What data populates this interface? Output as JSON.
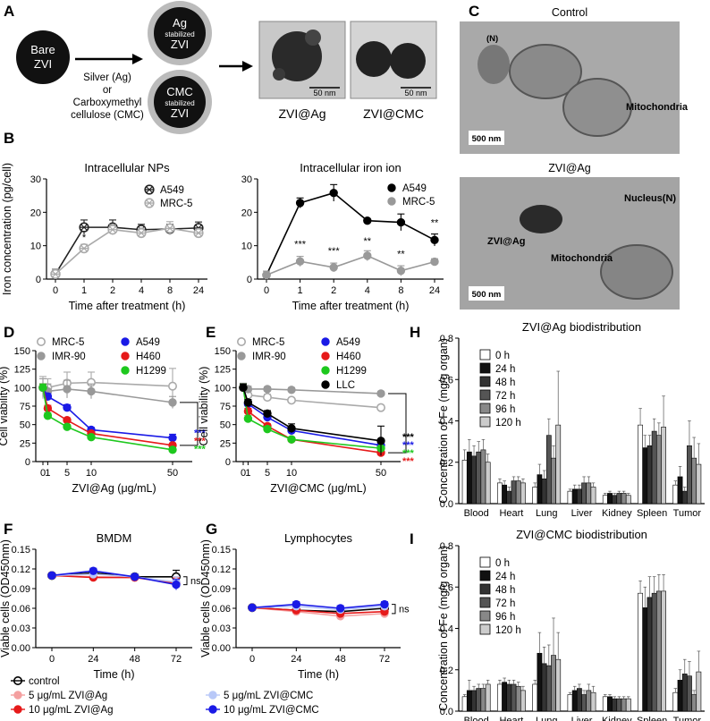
{
  "panels": {
    "A": {
      "label": "A",
      "bare": [
        "Bare",
        "ZVI"
      ],
      "ag_np": [
        "Ag",
        "stabilized",
        "ZVI"
      ],
      "cmc_np": [
        "CMC",
        "stabilized",
        "ZVI"
      ],
      "reagent": [
        "Silver (Ag)",
        "or",
        "Carboxymethyl",
        "cellulose (CMC)"
      ],
      "tem_scale": [
        "50 nm",
        "50 nm"
      ],
      "tem_names": [
        "ZVI@Ag",
        "ZVI@CMC"
      ]
    },
    "C": {
      "label": "C",
      "control_title": "Control",
      "control_labels": [
        "(N)",
        "Mitochondria",
        "500 nm"
      ],
      "zvi_title": "ZVI@Ag",
      "zvi_labels": [
        "Nucleus(N)",
        "ZVI@Ag",
        "Mitochondria",
        "500 nm"
      ]
    },
    "B": {
      "label": "B"
    },
    "D": {
      "label": "D"
    },
    "E": {
      "label": "E"
    },
    "F": {
      "label": "F"
    },
    "G": {
      "label": "G"
    },
    "H": {
      "label": "H"
    },
    "I": {
      "label": "I"
    }
  },
  "colors": {
    "A549": "#1a1ae6",
    "H460": "#e61a1a",
    "H1299": "#1ec81e",
    "LLC": "#000000",
    "gray": "#999999",
    "lightgray": "#bbbbbb"
  },
  "chart_data": [
    {
      "id": "B1",
      "type": "line",
      "title": "Intracellular NPs",
      "xlabel": "Time after treatment (h)",
      "ylabel": "Iron concentration (pg/cell)",
      "categories": [
        "0",
        "1",
        "2",
        "4",
        "8",
        "24"
      ],
      "ylim": [
        0,
        30
      ],
      "yticks": [
        0,
        10,
        20,
        30
      ],
      "legend_position": "top-right",
      "series": [
        {
          "name": "A549",
          "values": [
            1.5,
            15.5,
            15.5,
            14.8,
            15,
            15.3
          ],
          "err": [
            1.5,
            2.2,
            2.2,
            1.6,
            1.4,
            1.8
          ],
          "color": "#222222",
          "marker": "circle-x"
        },
        {
          "name": "MRC-5",
          "values": [
            1.5,
            9.2,
            14.8,
            13.8,
            15.2,
            13.8
          ],
          "err": [
            1.5,
            1.2,
            1.5,
            1.5,
            2.0,
            1.2
          ],
          "color": "#aaaaaa",
          "marker": "circle-x"
        }
      ],
      "annotations": [
        {
          "x": "1",
          "y": 11.5,
          "text": "*"
        }
      ]
    },
    {
      "id": "B2",
      "type": "line",
      "title": "Intracellular iron ion",
      "xlabel": "Time after treatment (h)",
      "ylabel": "",
      "categories": [
        "0",
        "1",
        "2",
        "4",
        "8",
        "24"
      ],
      "ylim": [
        0,
        30
      ],
      "yticks": [
        0,
        10,
        20,
        30
      ],
      "legend_position": "top-right",
      "series": [
        {
          "name": "A549",
          "values": [
            1.2,
            22.8,
            25.8,
            17.5,
            17,
            11.7
          ],
          "err": [
            1.2,
            1.5,
            2.5,
            0.5,
            2.5,
            1.8
          ],
          "color": "#000000",
          "marker": "circle"
        },
        {
          "name": "MRC-5",
          "values": [
            1.2,
            5.3,
            3.5,
            7,
            2.5,
            5.2
          ],
          "err": [
            1.2,
            1.5,
            1.3,
            1.5,
            1.5,
            0.9
          ],
          "color": "#999999",
          "marker": "circle"
        }
      ],
      "annotations": [
        {
          "x": "1",
          "y": 9.5,
          "text": "***"
        },
        {
          "x": "2",
          "y": 7.5,
          "text": "***"
        },
        {
          "x": "4",
          "y": 10.5,
          "text": "**"
        },
        {
          "x": "8",
          "y": 6.5,
          "text": "**"
        },
        {
          "x": "24",
          "y": 16,
          "text": "**"
        }
      ]
    },
    {
      "id": "D",
      "type": "line",
      "title": "",
      "xlabel": "ZVI@Ag (μg/mL)",
      "ylabel": "Cell viability (%)",
      "x": [
        0,
        1,
        5,
        10,
        50
      ],
      "xticks": [
        "0",
        "1",
        "5",
        "10",
        "50"
      ],
      "ylim": [
        0,
        150
      ],
      "yticks": [
        0,
        25,
        50,
        75,
        100,
        125,
        150
      ],
      "series": [
        {
          "name": "MRC-5",
          "values": [
            100,
            100,
            106,
            107,
            102
          ],
          "err": [
            15,
            12,
            15,
            14,
            24
          ],
          "color": "#aaaaaa",
          "marker": "open"
        },
        {
          "name": "IMR-90",
          "values": [
            100,
            95,
            98,
            95,
            80
          ],
          "err": [
            12,
            10,
            12,
            10,
            8
          ],
          "color": "#999999",
          "marker": "filled"
        },
        {
          "name": "A549",
          "values": [
            100,
            88,
            73,
            43,
            32
          ],
          "err": [
            5,
            4,
            4,
            3,
            5
          ],
          "color": "#1a1ae6",
          "marker": "filled"
        },
        {
          "name": "H460",
          "values": [
            100,
            72,
            56,
            38,
            22
          ],
          "err": [
            5,
            4,
            3,
            3,
            3
          ],
          "color": "#e61a1a",
          "marker": "filled"
        },
        {
          "name": "H1299",
          "values": [
            100,
            62,
            47,
            33,
            16
          ],
          "err": [
            5,
            4,
            3,
            3,
            3
          ],
          "color": "#1ec81e",
          "marker": "filled"
        }
      ],
      "stars": [
        {
          "text": "***",
          "color": "#1a1ae6"
        },
        {
          "text": "***",
          "color": "#e61a1a"
        },
        {
          "text": "***",
          "color": "#1ec81e"
        }
      ]
    },
    {
      "id": "E",
      "type": "line",
      "title": "",
      "xlabel": "ZVI@CMC (μg/mL)",
      "ylabel": "Cell viability (%)",
      "x": [
        0,
        1,
        5,
        10,
        50
      ],
      "xticks": [
        "0",
        "1",
        "5",
        "10",
        "50"
      ],
      "ylim": [
        0,
        150
      ],
      "yticks": [
        0,
        25,
        50,
        75,
        100,
        125,
        150
      ],
      "series": [
        {
          "name": "MRC-5",
          "values": [
            100,
            90,
            87,
            83,
            73
          ],
          "err": [
            6,
            5,
            4,
            3,
            3
          ],
          "color": "#aaaaaa",
          "marker": "open"
        },
        {
          "name": "IMR-90",
          "values": [
            100,
            98,
            98,
            97,
            92
          ],
          "err": [
            5,
            4,
            3,
            3,
            3
          ],
          "color": "#999999",
          "marker": "filled"
        },
        {
          "name": "A549",
          "values": [
            100,
            78,
            60,
            42,
            22
          ],
          "err": [
            5,
            4,
            3,
            3,
            3
          ],
          "color": "#1a1ae6",
          "marker": "filled"
        },
        {
          "name": "H460",
          "values": [
            100,
            68,
            48,
            30,
            12
          ],
          "err": [
            5,
            4,
            3,
            3,
            3
          ],
          "color": "#e61a1a",
          "marker": "filled"
        },
        {
          "name": "H1299",
          "values": [
            100,
            58,
            44,
            30,
            18
          ],
          "err": [
            5,
            4,
            3,
            3,
            3
          ],
          "color": "#1ec81e",
          "marker": "filled"
        },
        {
          "name": "LLC",
          "values": [
            100,
            80,
            65,
            45,
            28
          ],
          "err": [
            5,
            4,
            4,
            6,
            20
          ],
          "color": "#000000",
          "marker": "filled"
        }
      ],
      "stars": [
        {
          "text": "***",
          "color": "#000000"
        },
        {
          "text": "***",
          "color": "#1a1ae6"
        },
        {
          "text": "***",
          "color": "#1ec81e"
        },
        {
          "text": "***",
          "color": "#e61a1a"
        }
      ]
    },
    {
      "id": "F",
      "type": "line",
      "title": "BMDM",
      "xlabel": "Time (h)",
      "ylabel": "Viable cells (OD450nm)",
      "x": [
        0,
        24,
        48,
        72
      ],
      "xticks": [
        "0",
        "24",
        "48",
        "72"
      ],
      "ylim": [
        0,
        0.15
      ],
      "yticks": [
        "0.00",
        "0.03",
        "0.06",
        "0.09",
        "0.12",
        "0.15"
      ],
      "series": [
        {
          "name": "control",
          "values": [
            0.11,
            0.114,
            0.108,
            0.108
          ],
          "err": [
            0.003,
            0.004,
            0.004,
            0.01
          ],
          "color": "#000000",
          "marker": "open"
        },
        {
          "name": "5 μg/mL ZVI@Ag",
          "values": [
            0.11,
            0.108,
            0.107,
            0.1
          ],
          "err": [
            0.003,
            0.004,
            0.004,
            0.008
          ],
          "color": "#f4a0a0",
          "marker": "filled"
        },
        {
          "name": "10 μg/mL ZVI@Ag",
          "values": [
            0.11,
            0.107,
            0.107,
            0.098
          ],
          "err": [
            0.003,
            0.004,
            0.004,
            0.008
          ],
          "color": "#e61a1a",
          "marker": "filled"
        },
        {
          "name": "5 μg/mL ZVI@CMC",
          "values": [
            0.11,
            0.112,
            0.108,
            0.1
          ],
          "err": [
            0.003,
            0.004,
            0.004,
            0.008
          ],
          "color": "#b8c8f8",
          "marker": "filled"
        },
        {
          "name": "10 μg/mL ZVI@CMC",
          "values": [
            0.11,
            0.117,
            0.108,
            0.096
          ],
          "err": [
            0.003,
            0.004,
            0.004,
            0.008
          ],
          "color": "#1a1ae6",
          "marker": "filled"
        }
      ],
      "sig": "ns"
    },
    {
      "id": "G",
      "type": "line",
      "title": "Lymphocytes",
      "xlabel": "Time (h)",
      "ylabel": "Viable cells (OD450nm)",
      "x": [
        0,
        24,
        48,
        72
      ],
      "xticks": [
        "0",
        "24",
        "48",
        "72"
      ],
      "ylim": [
        0,
        0.15
      ],
      "yticks": [
        "0.00",
        "0.03",
        "0.06",
        "0.09",
        "0.12",
        "0.15"
      ],
      "series": [
        {
          "name": "control",
          "values": [
            0.061,
            0.057,
            0.055,
            0.06
          ],
          "err": [
            0.002,
            0.004,
            0.004,
            0.004
          ],
          "color": "#000000",
          "marker": "open"
        },
        {
          "name": "5 μg/mL ZVI@Ag",
          "values": [
            0.061,
            0.055,
            0.048,
            0.052
          ],
          "err": [
            0.002,
            0.004,
            0.006,
            0.004
          ],
          "color": "#f4a0a0",
          "marker": "filled"
        },
        {
          "name": "10 μg/mL ZVI@Ag",
          "values": [
            0.061,
            0.057,
            0.052,
            0.055
          ],
          "err": [
            0.002,
            0.004,
            0.004,
            0.004
          ],
          "color": "#e61a1a",
          "marker": "filled"
        },
        {
          "name": "5 μg/mL ZVI@CMC",
          "values": [
            0.061,
            0.063,
            0.058,
            0.063
          ],
          "err": [
            0.002,
            0.004,
            0.004,
            0.004
          ],
          "color": "#b8c8f8",
          "marker": "filled"
        },
        {
          "name": "10 μg/mL ZVI@CMC",
          "values": [
            0.061,
            0.066,
            0.06,
            0.066
          ],
          "err": [
            0.002,
            0.004,
            0.004,
            0.004
          ],
          "color": "#1a1ae6",
          "marker": "filled"
        }
      ],
      "sig": "ns"
    },
    {
      "id": "H",
      "type": "bar",
      "title": "ZVI@Ag biodistribution",
      "xlabel": "",
      "ylabel": "Concentration of Fe (mg/g organ)",
      "categories": [
        "Blood",
        "Heart",
        "Lung",
        "Liver",
        "Kidney",
        "Spleen",
        "Tumor"
      ],
      "ylim": [
        0,
        0.8
      ],
      "yticks": [
        "0.0",
        "0.2",
        "0.4",
        "0.6",
        "0.8"
      ],
      "series": [
        {
          "name": "0 h",
          "color": "#ffffff",
          "values": [
            0.21,
            0.1,
            0.08,
            0.06,
            0.04,
            0.38,
            0.09
          ],
          "err": [
            0.05,
            0.02,
            0.02,
            0.01,
            0.01,
            0.08,
            0.02
          ]
        },
        {
          "name": "24 h",
          "color": "#111111",
          "values": [
            0.25,
            0.09,
            0.14,
            0.07,
            0.05,
            0.27,
            0.13
          ],
          "err": [
            0.06,
            0.02,
            0.05,
            0.02,
            0.01,
            0.06,
            0.05
          ]
        },
        {
          "name": "48 h",
          "color": "#333333",
          "values": [
            0.23,
            0.06,
            0.12,
            0.07,
            0.04,
            0.28,
            0.06
          ],
          "err": [
            0.05,
            0.02,
            0.04,
            0.02,
            0.01,
            0.05,
            0.02
          ]
        },
        {
          "name": "72 h",
          "color": "#555555",
          "values": [
            0.25,
            0.11,
            0.33,
            0.1,
            0.05,
            0.35,
            0.28
          ],
          "err": [
            0.05,
            0.02,
            0.08,
            0.03,
            0.01,
            0.06,
            0.12
          ]
        },
        {
          "name": "96 h",
          "color": "#888888",
          "values": [
            0.26,
            0.11,
            0.22,
            0.1,
            0.05,
            0.33,
            0.22
          ],
          "err": [
            0.05,
            0.02,
            0.06,
            0.03,
            0.01,
            0.06,
            0.1
          ]
        },
        {
          "name": "120 h",
          "color": "#cccccc",
          "values": [
            0.2,
            0.1,
            0.38,
            0.08,
            0.04,
            0.37,
            0.19
          ],
          "err": [
            0.04,
            0.02,
            0.26,
            0.02,
            0.01,
            0.15,
            0.1
          ]
        }
      ]
    },
    {
      "id": "I",
      "type": "bar",
      "title": "ZVI@CMC biodistribution",
      "xlabel": "",
      "ylabel": "Concentration of Fe (mg/g organ)",
      "categories": [
        "Blood",
        "Heart",
        "Lung",
        "Liver",
        "Kidney",
        "Spleen",
        "Tumor"
      ],
      "ylim": [
        0,
        0.8
      ],
      "yticks": [
        "0.0",
        "0.2",
        "0.4",
        "0.6",
        "0.8"
      ],
      "series": [
        {
          "name": "0 h",
          "color": "#ffffff",
          "values": [
            0.07,
            0.13,
            0.13,
            0.08,
            0.07,
            0.57,
            0.09
          ],
          "err": [
            0.01,
            0.02,
            0.02,
            0.01,
            0.01,
            0.06,
            0.02
          ]
        },
        {
          "name": "24 h",
          "color": "#111111",
          "values": [
            0.1,
            0.14,
            0.28,
            0.1,
            0.07,
            0.5,
            0.15
          ],
          "err": [
            0.05,
            0.02,
            0.1,
            0.02,
            0.01,
            0.1,
            0.05
          ]
        },
        {
          "name": "48 h",
          "color": "#333333",
          "values": [
            0.1,
            0.13,
            0.23,
            0.11,
            0.06,
            0.55,
            0.18
          ],
          "err": [
            0.02,
            0.02,
            0.08,
            0.02,
            0.01,
            0.1,
            0.07
          ]
        },
        {
          "name": "72 h",
          "color": "#555555",
          "values": [
            0.11,
            0.13,
            0.22,
            0.08,
            0.06,
            0.57,
            0.17
          ],
          "err": [
            0.02,
            0.02,
            0.1,
            0.02,
            0.01,
            0.08,
            0.07
          ]
        },
        {
          "name": "96 h",
          "color": "#888888",
          "values": [
            0.11,
            0.12,
            0.27,
            0.1,
            0.06,
            0.58,
            0.08
          ],
          "err": [
            0.02,
            0.02,
            0.18,
            0.03,
            0.01,
            0.08,
            0.02
          ]
        },
        {
          "name": "120 h",
          "color": "#cccccc",
          "values": [
            0.13,
            0.1,
            0.25,
            0.09,
            0.06,
            0.58,
            0.19
          ],
          "err": [
            0.02,
            0.02,
            0.13,
            0.03,
            0.01,
            0.08,
            0.1
          ]
        }
      ]
    }
  ]
}
